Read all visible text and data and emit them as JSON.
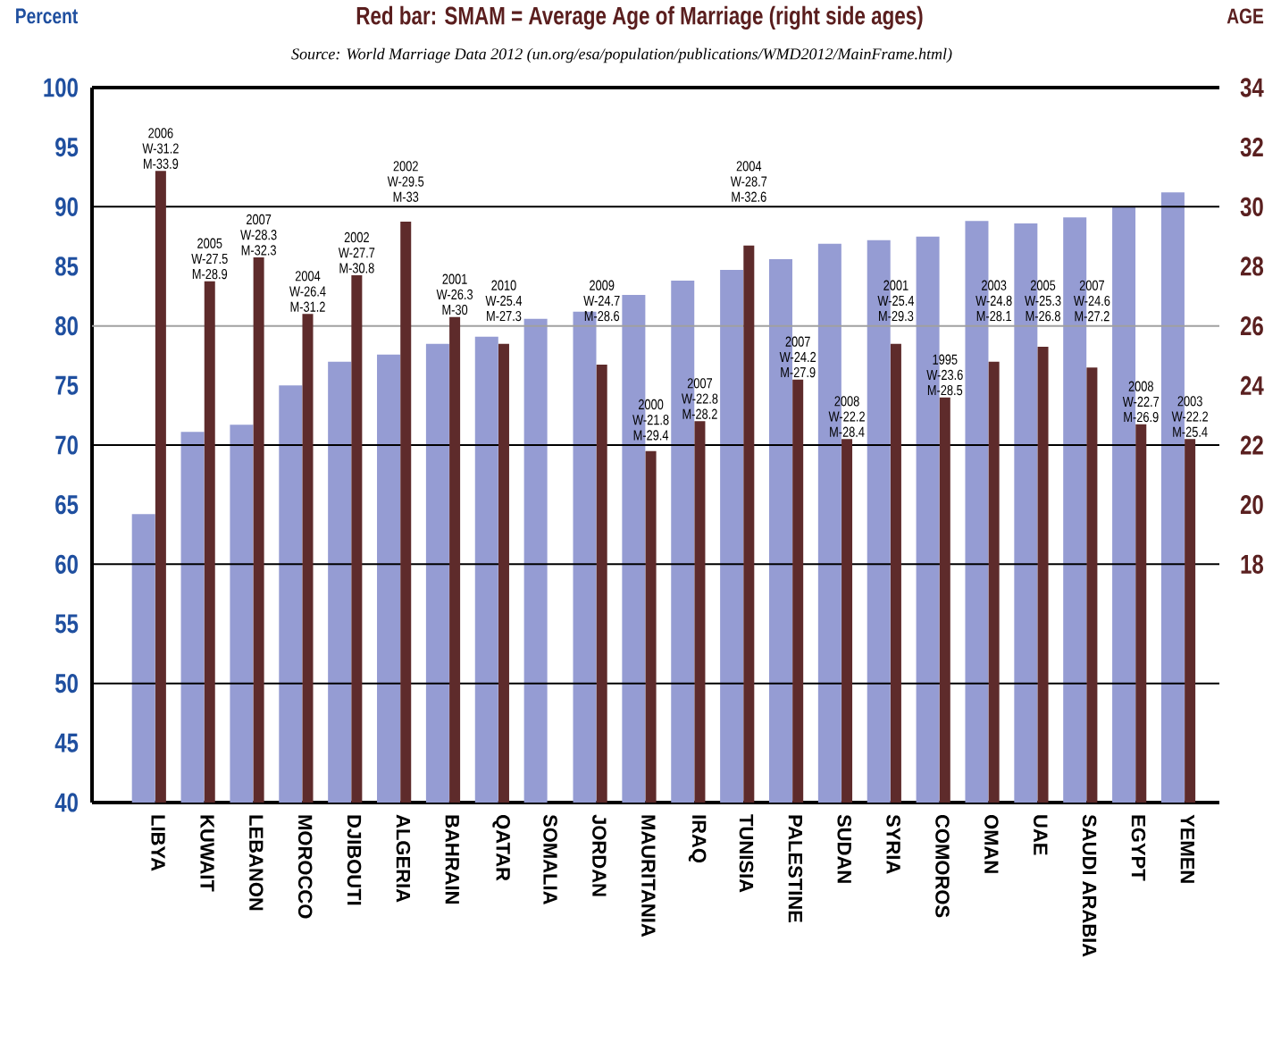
{
  "chart_data": {
    "type": "bar",
    "title": "Red bar: SMAM = Average Age of Marriage (right side ages)",
    "subtitle": "Source: World Marriage Data 2012 (un.org/esa/population/publications/WMD2012/MainFrame.html)",
    "ylabel": "Percent",
    "y2label": "AGE",
    "categories": [
      "LIBYA",
      "KUWAIT",
      "LEBANON",
      "MOROCCO",
      "DJIBOUTI",
      "ALGERIA",
      "BAHRAIN",
      "QATAR",
      "SOMALIA",
      "JORDAN",
      "MAURITANIA",
      "IRAQ",
      "TUNISIA",
      "PALESTINE",
      "SUDAN",
      "SYRIA",
      "COMOROS",
      "OMAN",
      "UAE",
      "SAUDI ARABIA",
      "EGYPT",
      "YEMEN"
    ],
    "series": [
      {
        "color": "#959cd3",
        "values": [
          64.2,
          71.1,
          71.7,
          75.0,
          77.0,
          77.6,
          78.5,
          79.1,
          80.6,
          81.2,
          82.6,
          83.8,
          84.7,
          85.6,
          86.9,
          87.2,
          87.5,
          88.8,
          88.6,
          89.1,
          90.0,
          91.2
        ]
      },
      {
        "color": "#5e2b2b",
        "axis": "y2",
        "values": [
          31.2,
          27.5,
          28.3,
          26.4,
          27.7,
          29.5,
          26.3,
          25.4,
          null,
          24.7,
          21.8,
          22.8,
          28.7,
          24.2,
          22.2,
          25.4,
          23.6,
          24.8,
          25.3,
          24.6,
          22.7,
          22.2
        ]
      }
    ],
    "annotations": [
      "2006 W-31.2 M-33.9",
      "2005 W-27.5 M-28.9",
      "2007 W-28.3 M-32.3",
      "2004 W-26.4 M-31.2",
      "2002 W-27.7 M-30.8",
      "2002 W-29.5 M-33",
      "2001 W-26.3 M-30",
      "2010 W-25.4 M-27.3",
      "2009 W-24.7 M-28.6",
      "2000 W-21.8 M-29.4",
      "2007 W-22.8 M-28.2",
      "2004 W-28.7 M-32.6",
      "2007 W-24.2 M-27.9",
      "2008 W-22.2 M-28.4",
      "2001 W-25.4 M-29.3",
      "1995 W-23.6 M-28.5",
      "2003 W-24.8 M-28.1",
      "2005 W-25.3 M-26.8",
      "2007 W-24.6 M-27.2",
      "2008 W-22.7 M-26.9",
      "2003 W-22.2 M-25.4"
    ],
    "ylim": [
      40,
      100
    ],
    "yticks": [
      40,
      45,
      50,
      55,
      60,
      65,
      70,
      75,
      80,
      85,
      90,
      95,
      100
    ],
    "y2lim": [
      10,
      34
    ],
    "y2ticks": [
      18,
      20,
      22,
      24,
      26,
      28,
      30,
      32,
      34
    ],
    "ref_lines": [
      {
        "axis": "y",
        "value": 50,
        "color": "#000000"
      },
      {
        "axis": "y",
        "value": 60,
        "color": "#000000"
      },
      {
        "axis": "y",
        "value": 70,
        "color": "#000000"
      },
      {
        "axis": "y",
        "value": 80,
        "color": "#a0a0a0"
      },
      {
        "axis": "y",
        "value": 90,
        "color": "#000000"
      }
    ]
  }
}
